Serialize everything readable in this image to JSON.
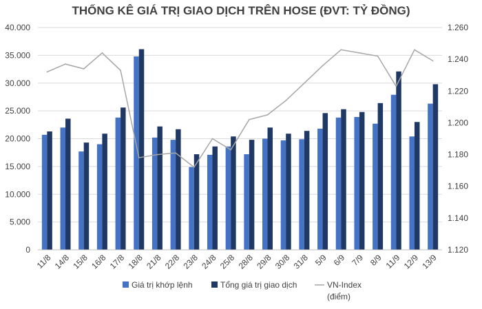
{
  "chart_data": {
    "type": "bar",
    "title": "THỐNG KÊ GIÁ TRỊ GIAO DỊCH TRÊN HOSE (ĐVT: TỶ ĐỒNG)",
    "categories": [
      "11/8",
      "14/8",
      "15/8",
      "16/8",
      "17/8",
      "18/8",
      "21/8",
      "22/8",
      "23/8",
      "24/8",
      "25/8",
      "28/8",
      "29/8",
      "30/8",
      "31/8",
      "5/9",
      "6/9",
      "7/9",
      "8/9",
      "11/9",
      "12/9",
      "13/9"
    ],
    "series": [
      {
        "name": "Giá trị khớp lệnh",
        "type": "bar",
        "axis": "left",
        "color": "#4472C4",
        "values": [
          20700,
          22000,
          17700,
          19000,
          23800,
          34800,
          20200,
          19800,
          14900,
          17100,
          18600,
          17200,
          20000,
          19700,
          19900,
          21800,
          23800,
          23900,
          22700,
          27900,
          20400,
          26300
        ]
      },
      {
        "name": "Tổng giá trị giao dịch",
        "type": "bar",
        "axis": "left",
        "color": "#203864",
        "values": [
          21300,
          23600,
          19300,
          20900,
          25600,
          36100,
          22200,
          21700,
          17200,
          18600,
          20400,
          19800,
          22000,
          20900,
          21400,
          24600,
          25300,
          24800,
          26400,
          32100,
          23000,
          29800
        ]
      },
      {
        "name": "VN-Index (điểm)",
        "type": "line",
        "axis": "right",
        "color": "#A6A6A6",
        "values": [
          1232,
          1237,
          1234,
          1244,
          1233,
          1178,
          1180,
          1181,
          1172,
          1190,
          1183,
          1202,
          1205,
          1214,
          1225,
          1236,
          1246,
          1244,
          1242,
          1223,
          1246,
          1239
        ]
      }
    ],
    "ylim": [
      0,
      40000
    ],
    "yticks": [
      "0",
      "5.000",
      "10.000",
      "15.000",
      "20.000",
      "25.000",
      "30.000",
      "35.000",
      "40.000"
    ],
    "y2lim": [
      1120,
      1260
    ],
    "y2ticks": [
      "1.120",
      "1.140",
      "1.160",
      "1.180",
      "1.200",
      "1.220",
      "1.240",
      "1.260"
    ],
    "grid": true,
    "legend_position": "bottom",
    "legend": [
      {
        "label": "Giá trị khớp lệnh",
        "color": "#4472C4",
        "kind": "bar"
      },
      {
        "label": "Tổng giá trị giao dịch",
        "color": "#203864",
        "kind": "bar"
      },
      {
        "label": "VN-Index",
        "label2": "(điểm)",
        "color": "#A6A6A6",
        "kind": "line"
      }
    ],
    "colors": {
      "grid": "#D9D9D9",
      "axis": "#BFBFBF",
      "text": "#404040"
    }
  }
}
